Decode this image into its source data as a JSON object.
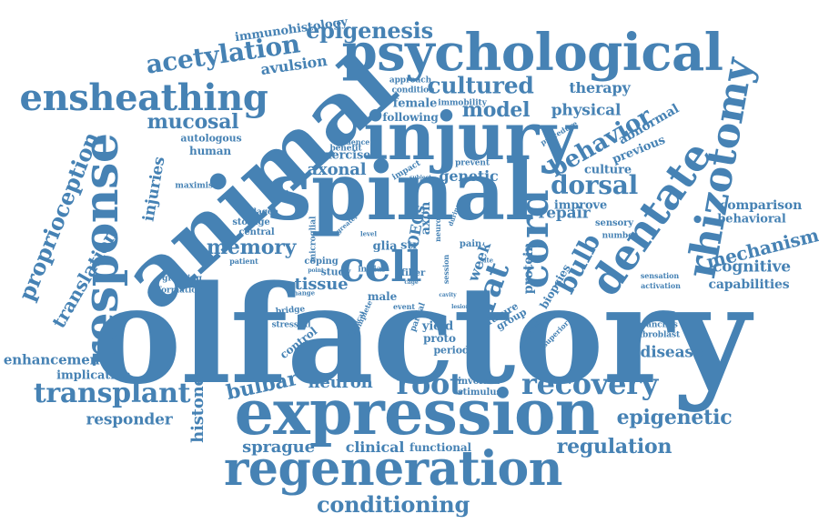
{
  "word_color": "#4682b4",
  "background": "#ffffff",
  "words": [
    "olfactory",
    "animal",
    "spinal",
    "expression",
    "injury",
    "psychological",
    "regeneration",
    "response",
    "rhizotomy",
    "dentate",
    "ensheathing",
    "cell",
    "cord",
    "root",
    "recovery",
    "transplant",
    "dorsal",
    "cultured",
    "epigenesis",
    "acetylation",
    "bulb",
    "rat",
    "conditioning",
    "behavior",
    "proprioception",
    "memory",
    "epigenetic",
    "regulation",
    "mucosal",
    "model",
    "physical",
    "therapy",
    "mechanism",
    "cognitive",
    "capabilities",
    "comparison",
    "behavioral",
    "sprague",
    "clinical",
    "functional",
    "histone",
    "responder",
    "enhancement",
    "implication",
    "bulbar",
    "neuron",
    "disease",
    "tissue",
    "axonal",
    "genetic",
    "culture",
    "previous",
    "abnormal",
    "translation",
    "injuries",
    "avulsion",
    "immunohistology",
    "female",
    "following",
    "autologous",
    "human",
    "exercise",
    "protein",
    "biopsies",
    "improve",
    "repair",
    "sensory",
    "week",
    "OECs",
    "axon",
    "male",
    "yield",
    "proto",
    "period",
    "control",
    "bridge",
    "stressful",
    "coping",
    "central",
    "storage",
    "collagen",
    "grasping",
    "formation",
    "maximise",
    "patient",
    "change",
    "approach",
    "condition",
    "immobility",
    "evidence",
    "benefit",
    "impact",
    "prevent",
    "procedure",
    "number",
    "sensation",
    "activation",
    "branches",
    "fibroblast",
    "involved",
    "stimulus",
    "superior",
    "studies",
    "group",
    "future",
    "lesion",
    "cavity",
    "fiber",
    "initial",
    "study",
    "point",
    "glia",
    "str",
    "level",
    "microglial",
    "neuronal",
    "subject",
    "during",
    "pain",
    "cervical",
    "complete",
    "partial",
    "session",
    "event",
    "cage",
    "site",
    "greater"
  ]
}
